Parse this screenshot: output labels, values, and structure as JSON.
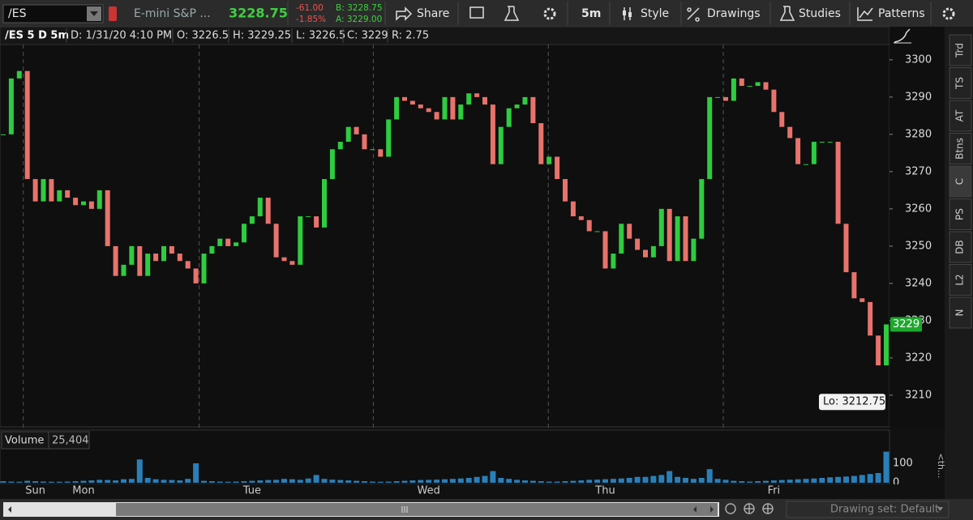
{
  "toolbar": {
    "symbol": "/ES",
    "description": "E-mini S&P ...",
    "last": "3228.75",
    "change": "-61.00",
    "change_pct": "-1.85%",
    "bid": "B: 3228.75",
    "ask": "A: 3229.00",
    "share": "Share",
    "interval": "5m",
    "style": "Style",
    "drawings": "Drawings",
    "studies": "Studies",
    "patterns": "Patterns"
  },
  "info_bar": [
    "/ES 5 D 5m",
    "D: 1/31/20 4:10 PM",
    "O: 3226.5",
    "H: 3229.25",
    "L: 3226.5",
    "C: 3229",
    "R: 2.75"
  ],
  "chart_data": [
    {
      "type": "candlestick",
      "up_color": "#2ecc40",
      "down_color": "#e8736c",
      "values": [
        3280,
        3295,
        3297,
        3268,
        3262,
        3268,
        3262,
        3265,
        3263,
        3261,
        3262,
        3260,
        3265,
        3250,
        3242,
        3245,
        3250,
        3242,
        3248,
        3246,
        3250,
        3248,
        3246,
        3244,
        3240,
        3248,
        3250,
        3252,
        3250,
        3251,
        3256,
        3258,
        3263,
        3256,
        3247,
        3246,
        3245,
        3258,
        3258,
        3255,
        3268,
        3276,
        3278,
        3282,
        3280,
        3276,
        3276,
        3274,
        3284,
        3290,
        3289,
        3288,
        3287,
        3286,
        3284,
        3290,
        3284,
        3288,
        3291,
        3290,
        3288,
        3272,
        3282,
        3287,
        3288,
        3290,
        3283,
        3272,
        3274,
        3268,
        3262,
        3258,
        3257,
        3254,
        3254,
        3244,
        3248,
        3256,
        3252,
        3249,
        3247,
        3250,
        3260,
        3246,
        3258,
        3246,
        3252,
        3268,
        3290,
        3290,
        3289,
        3295,
        3293,
        3293,
        3294,
        3292,
        3286,
        3282,
        3279,
        3272,
        3272,
        3278,
        3278,
        3278,
        3256,
        3243,
        3236,
        3235,
        3226,
        3218,
        3229
      ],
      "ylim": [
        3201.5,
        3304.1
      ],
      "yticks": [
        3210,
        3220,
        3230,
        3240,
        3250,
        3260,
        3270,
        3280,
        3290,
        3300
      ],
      "grid": false,
      "xticks": [
        {
          "value": 4,
          "label": "Sun"
        },
        {
          "value": 10,
          "label": "Mon"
        },
        {
          "value": 31,
          "label": "Tue"
        },
        {
          "value": 53,
          "label": "Wed"
        },
        {
          "value": 75,
          "label": "Thu"
        },
        {
          "value": 96,
          "label": "Fri"
        }
      ],
      "day_breaks": [
        2.5,
        24.4,
        46.1,
        67.9,
        89.7
      ],
      "last_label": {
        "value": 3229,
        "label": "3229"
      },
      "low_label": {
        "value": 3212.75,
        "label": "Lo: 3212.75"
      }
    },
    {
      "type": "bar",
      "title": "Volume",
      "value_label": "25,404",
      "color": "#2a7fb8",
      "values": [
        8,
        6,
        5,
        10,
        8,
        6,
        5,
        5,
        6,
        8,
        10,
        12,
        15,
        14,
        12,
        18,
        20,
        120,
        25,
        18,
        15,
        14,
        12,
        20,
        100,
        10,
        8,
        6,
        5,
        6,
        8,
        10,
        12,
        14,
        15,
        20,
        18,
        15,
        22,
        40,
        20,
        16,
        14,
        12,
        10,
        8,
        6,
        5,
        6,
        8,
        10,
        12,
        14,
        15,
        16,
        18,
        20,
        22,
        25,
        30,
        35,
        60,
        25,
        20,
        15,
        12,
        10,
        8,
        6,
        6,
        8,
        10,
        12,
        15,
        16,
        18,
        20,
        22,
        25,
        30,
        30,
        35,
        40,
        60,
        30,
        25,
        20,
        25,
        70,
        20,
        15,
        10,
        8,
        6,
        8,
        10,
        12,
        14,
        16,
        18,
        20,
        22,
        25,
        28,
        30,
        32,
        35,
        40,
        45,
        50,
        160
      ],
      "ylim": [
        0,
        250
      ],
      "yticks": [
        0,
        100
      ]
    }
  ],
  "side_tabs": [
    "Trd",
    "TS",
    "AT",
    "Btns",
    "C",
    "PS",
    "DB",
    "L2",
    "N"
  ],
  "side_label": "<th...",
  "footer": {
    "drawing_set": "Drawing set: Default"
  }
}
